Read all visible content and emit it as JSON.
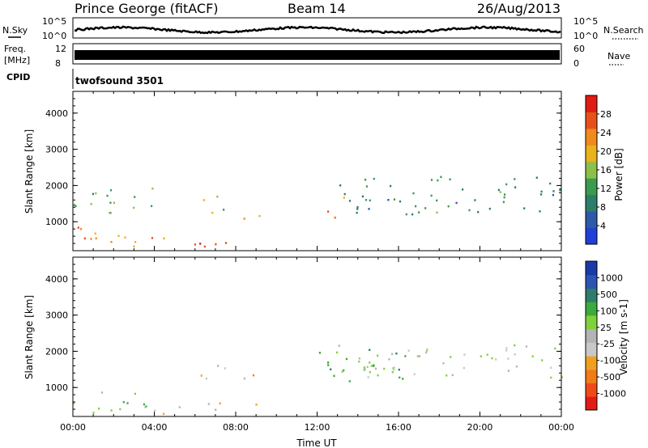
{
  "header": {
    "station": "Prince George (fitACF)",
    "beam": "Beam 14",
    "date": "26/Aug/2013"
  },
  "top_panels": {
    "nsky_label": "N.Sky",
    "nsearch_label": "N.Search",
    "nsky_ticks": [
      "10^5",
      "10^0"
    ],
    "nsearch_ticks": [
      "10^5",
      "10^0"
    ],
    "freq_label_1": "Freq.",
    "freq_label_2": "[MHz]",
    "freq_ticks": [
      "12",
      "8"
    ],
    "nave_label": "Nave",
    "nave_ticks": [
      "60",
      "0"
    ],
    "cpid_label": "CPID",
    "cpid_value": "twofsound 3501"
  },
  "colors": {
    "power_scale": [
      "#1f3fd6",
      "#2d5aa8",
      "#2e7d6a",
      "#3a9a50",
      "#8cc04a",
      "#e9b31c",
      "#f08a1c",
      "#e8501a",
      "#e01c14"
    ],
    "velocity_scale": [
      "#e01c14",
      "#f04a1a",
      "#f07c18",
      "#f0a020",
      "#c8c8c8",
      "#b4b4b4",
      "#7fd23a",
      "#3caa3c",
      "#2e7d6a",
      "#2a55b0",
      "#1a3aa8"
    ]
  },
  "chart_data": [
    {
      "type": "heatmap",
      "panel": "power",
      "xlabel": "Time UT",
      "ylabel": "Slant Range [km]",
      "x_ticks": [
        "00:00",
        "04:00",
        "08:00",
        "12:00",
        "16:00",
        "20:00",
        "00:00"
      ],
      "y_ticks": [
        "1000",
        "2000",
        "3000",
        "4000"
      ],
      "xlim": [
        0,
        24
      ],
      "ylim": [
        200,
        4600
      ],
      "colorbar": {
        "label": "Power [dB]",
        "ticks": [
          "4",
          "8",
          "12",
          "16",
          "20",
          "24",
          "28"
        ],
        "range": [
          0,
          30
        ]
      },
      "features": [
        {
          "t0": 0.0,
          "t1": 4.5,
          "r0": 300,
          "r1": 900,
          "value": 20
        },
        {
          "t0": 3.5,
          "t1": 8.0,
          "r0": 300,
          "r1": 600,
          "value": 26
        },
        {
          "t0": 0.0,
          "t1": 4.0,
          "r0": 1200,
          "r1": 2000,
          "value": 12
        },
        {
          "t0": 6.2,
          "t1": 7.5,
          "r0": 1200,
          "r1": 1800,
          "value": 16
        },
        {
          "t0": 8.3,
          "t1": 9.3,
          "r0": 1100,
          "r1": 1600,
          "value": 22
        },
        {
          "t0": 12.2,
          "t1": 13.5,
          "r0": 1100,
          "r1": 1800,
          "value": 22
        },
        {
          "t0": 13.0,
          "t1": 24.0,
          "r0": 1200,
          "r1": 2300,
          "value": 10
        }
      ]
    },
    {
      "type": "heatmap",
      "panel": "velocity",
      "xlabel": "Time UT",
      "ylabel": "Slant Range [km]",
      "x_ticks": [
        "00:00",
        "04:00",
        "08:00",
        "12:00",
        "16:00",
        "20:00",
        "00:00"
      ],
      "y_ticks": [
        "1000",
        "2000",
        "3000",
        "4000"
      ],
      "xlim": [
        0,
        24
      ],
      "ylim": [
        200,
        4600
      ],
      "colorbar": {
        "label": "Velocity [m s-1]",
        "ticks": [
          "1000",
          "500",
          "100",
          "25",
          "-25",
          "-100",
          "-500",
          "-1000"
        ],
        "range": [
          -1000,
          1000
        ]
      },
      "features": [
        {
          "t0": 0.0,
          "t1": 4.0,
          "r0": 300,
          "r1": 900,
          "value": -150
        },
        {
          "t0": 3.5,
          "t1": 9.0,
          "r0": 300,
          "r1": 600,
          "value": 150
        },
        {
          "t0": 6.2,
          "t1": 7.5,
          "r0": 1200,
          "r1": 1800,
          "value": 300
        },
        {
          "t0": 8.3,
          "t1": 9.3,
          "r0": 1100,
          "r1": 1600,
          "value": 300
        },
        {
          "t0": 12.0,
          "t1": 17.5,
          "r0": 1200,
          "r1": 2200,
          "value": -300
        },
        {
          "t0": 13.0,
          "t1": 24.0,
          "r0": 1300,
          "r1": 2200,
          "value": 0
        }
      ]
    }
  ]
}
